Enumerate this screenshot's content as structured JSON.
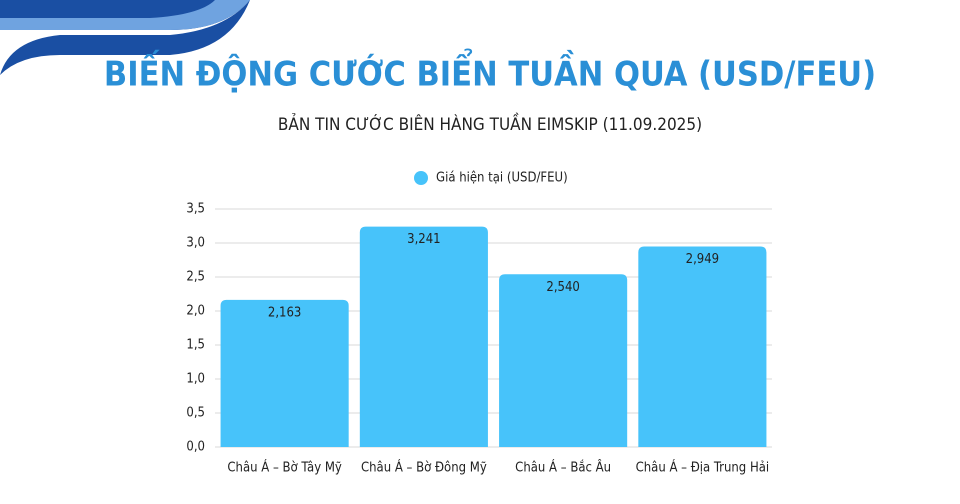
{
  "chart_data": {
    "type": "bar",
    "title": "BIẾN ĐỘNG CƯỚC BIỂN TUẦN QUA (USD/FEU)",
    "subtitle": "BẢN TIN CƯỚC BIÊN HÀNG TUẦN EIMSKIP (11.09.2025)",
    "categories": [
      "Châu Á – Bờ Tây Mỹ",
      "Châu Á – Bờ Đông Mỹ",
      "Châu Á – Bắc Âu",
      "Châu Á – Địa Trung Hải"
    ],
    "series": [
      {
        "name": "Giá hiện tại (USD/FEU)",
        "color": "#47c3fa",
        "values": [
          2.163,
          3.241,
          2.54,
          2.949
        ],
        "value_labels": [
          "2,163",
          "3,241",
          "2,540",
          "2,949"
        ]
      }
    ],
    "ylim": [
      0,
      3.5
    ],
    "yticks": [
      {
        "value": 0,
        "label": "0,0"
      },
      {
        "value": 0.5,
        "label": "0,5"
      },
      {
        "value": 1,
        "label": "1,0"
      },
      {
        "value": 1.5,
        "label": "1,5"
      },
      {
        "value": 2,
        "label": "2,0"
      },
      {
        "value": 2.5,
        "label": "2,5"
      },
      {
        "value": 3,
        "label": "3,0"
      },
      {
        "value": 3.5,
        "label": "3,5"
      }
    ],
    "grid": true
  }
}
